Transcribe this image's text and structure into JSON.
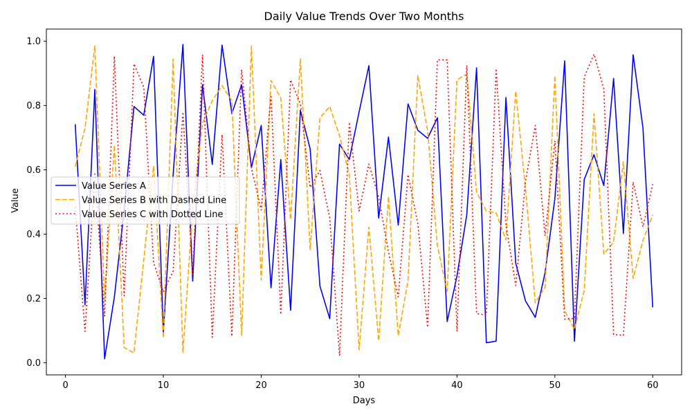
{
  "chart_data": {
    "type": "line",
    "title": "Daily Value Trends Over Two Months",
    "xlabel": "Days",
    "ylabel": "Value",
    "xlim": [
      -1.95,
      62.95
    ],
    "ylim": [
      -0.038,
      1.038
    ],
    "xticks": [
      0,
      10,
      20,
      30,
      40,
      50,
      60
    ],
    "yticks": [
      0.0,
      0.2,
      0.4,
      0.6,
      0.8,
      1.0
    ],
    "xtick_labels": [
      "0",
      "10",
      "20",
      "30",
      "40",
      "50",
      "60"
    ],
    "ytick_labels": [
      "0.0",
      "0.2",
      "0.4",
      "0.6",
      "0.8",
      "1.0"
    ],
    "legend_position": "center-left",
    "grid": false,
    "x": [
      1,
      2,
      3,
      4,
      5,
      6,
      7,
      8,
      9,
      10,
      11,
      12,
      13,
      14,
      15,
      16,
      17,
      18,
      19,
      20,
      21,
      22,
      23,
      24,
      25,
      26,
      27,
      28,
      29,
      30,
      31,
      32,
      33,
      34,
      35,
      36,
      37,
      38,
      39,
      40,
      41,
      42,
      43,
      44,
      45,
      46,
      47,
      48,
      49,
      50,
      51,
      52,
      53,
      54,
      55,
      56,
      57,
      58,
      59,
      60
    ],
    "series": [
      {
        "name": "Value Series A",
        "color": "#0000ff",
        "style": "solid",
        "values": [
          0.742,
          0.18,
          0.85,
          0.012,
          0.205,
          0.475,
          0.797,
          0.77,
          0.953,
          0.093,
          0.585,
          0.99,
          0.254,
          0.865,
          0.617,
          0.988,
          0.775,
          0.865,
          0.607,
          0.738,
          0.233,
          0.632,
          0.163,
          0.785,
          0.665,
          0.238,
          0.137,
          0.68,
          0.632,
          0.78,
          0.924,
          0.45,
          0.702,
          0.428,
          0.805,
          0.723,
          0.698,
          0.762,
          0.128,
          0.27,
          0.46,
          0.917,
          0.062,
          0.067,
          0.825,
          0.31,
          0.192,
          0.141,
          0.28,
          0.51,
          0.939,
          0.067,
          0.57,
          0.647,
          0.551,
          0.884,
          0.402,
          0.958,
          0.73,
          0.172
        ]
      },
      {
        "name": "Value Series B with Dashed Line",
        "color": "#ffa500",
        "style": "dashed",
        "values": [
          0.61,
          0.73,
          0.985,
          0.195,
          0.677,
          0.047,
          0.03,
          0.32,
          0.612,
          0.077,
          0.945,
          0.032,
          0.48,
          0.745,
          0.815,
          0.862,
          0.815,
          0.085,
          0.985,
          0.257,
          0.878,
          0.823,
          0.445,
          0.945,
          0.352,
          0.762,
          0.797,
          0.706,
          0.585,
          0.04,
          0.422,
          0.068,
          0.517,
          0.084,
          0.255,
          0.893,
          0.722,
          0.363,
          0.222,
          0.88,
          0.898,
          0.53,
          0.472,
          0.466,
          0.382,
          0.845,
          0.542,
          0.186,
          0.235,
          0.893,
          0.162,
          0.104,
          0.225,
          0.775,
          0.338,
          0.375,
          0.625,
          0.262,
          0.38,
          0.46
        ]
      },
      {
        "name": "Value Series C with Dotted Line",
        "color": "#ff0000",
        "style": "dotted",
        "values": [
          0.485,
          0.097,
          0.587,
          0.145,
          0.953,
          0.208,
          0.93,
          0.857,
          0.312,
          0.22,
          0.285,
          0.78,
          0.275,
          0.958,
          0.079,
          0.71,
          0.082,
          0.912,
          0.605,
          0.475,
          0.833,
          0.15,
          0.88,
          0.805,
          0.545,
          0.598,
          0.45,
          0.022,
          0.748,
          0.472,
          0.618,
          0.515,
          0.345,
          0.205,
          0.585,
          0.432,
          0.11,
          0.942,
          0.942,
          0.098,
          0.925,
          0.153,
          0.148,
          0.915,
          0.43,
          0.24,
          0.565,
          0.738,
          0.395,
          0.69,
          0.135,
          0.138,
          0.888,
          0.96,
          0.852,
          0.088,
          0.085,
          0.562,
          0.423,
          0.555
        ]
      }
    ]
  }
}
